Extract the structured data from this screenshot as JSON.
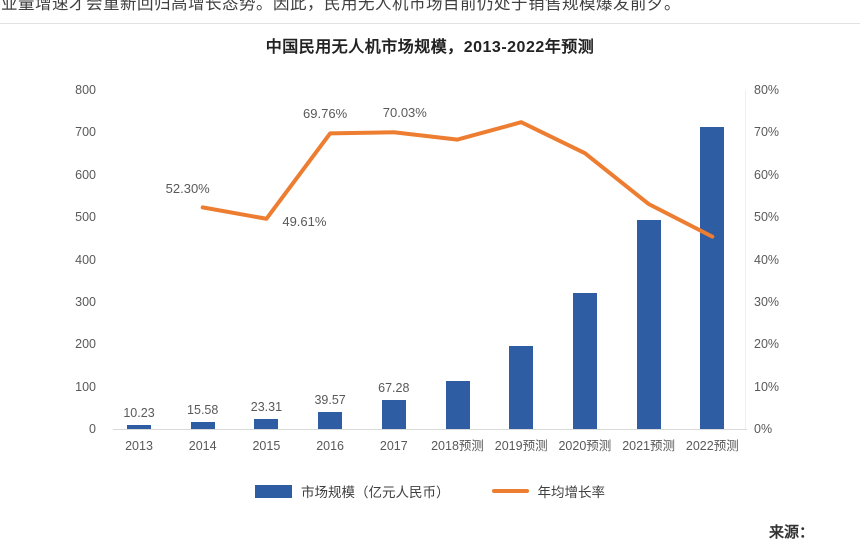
{
  "page": {
    "top_text": "业量增速才会重新回归高增长态势。因此，民用无人机市场目前仍处于销售规模爆发前夕。",
    "source_label": "来源："
  },
  "chart_data": {
    "type": "bar",
    "title": "中国民用无人机市场规模，2013-2022年预测",
    "categories": [
      "2013",
      "2014",
      "2015",
      "2016",
      "2017",
      "2018预测",
      "2019预测",
      "2020预测",
      "2021预测",
      "2022预测"
    ],
    "series": [
      {
        "name": "市场规模（亿元人民币）",
        "type": "bar",
        "axis": "left",
        "color": "#2f5da3",
        "values": [
          10.23,
          15.58,
          23.31,
          39.57,
          67.28,
          113,
          195,
          322,
          494,
          713
        ],
        "data_labels": [
          "10.23",
          "15.58",
          "23.31",
          "39.57",
          "67.28",
          null,
          null,
          null,
          null,
          null
        ]
      },
      {
        "name": "年均增长率",
        "type": "line",
        "axis": "right",
        "color": "#ED7D31",
        "values": [
          null,
          52.3,
          49.61,
          69.76,
          70.03,
          68.3,
          72.4,
          65.1,
          53.1,
          45.4
        ],
        "data_labels": [
          null,
          "52.30%",
          "49.61%",
          "69.76%",
          "70.03%",
          null,
          null,
          null,
          null,
          null
        ]
      }
    ],
    "left_axis": {
      "ticks": [
        0,
        100,
        200,
        300,
        400,
        500,
        600,
        700,
        800
      ],
      "min": 0,
      "max": 800
    },
    "right_axis": {
      "ticks": [
        0,
        10,
        20,
        30,
        40,
        50,
        60,
        70,
        80
      ],
      "suffix": "%",
      "min": 0,
      "max": 80
    },
    "grid": false,
    "legend_position": "bottom"
  }
}
